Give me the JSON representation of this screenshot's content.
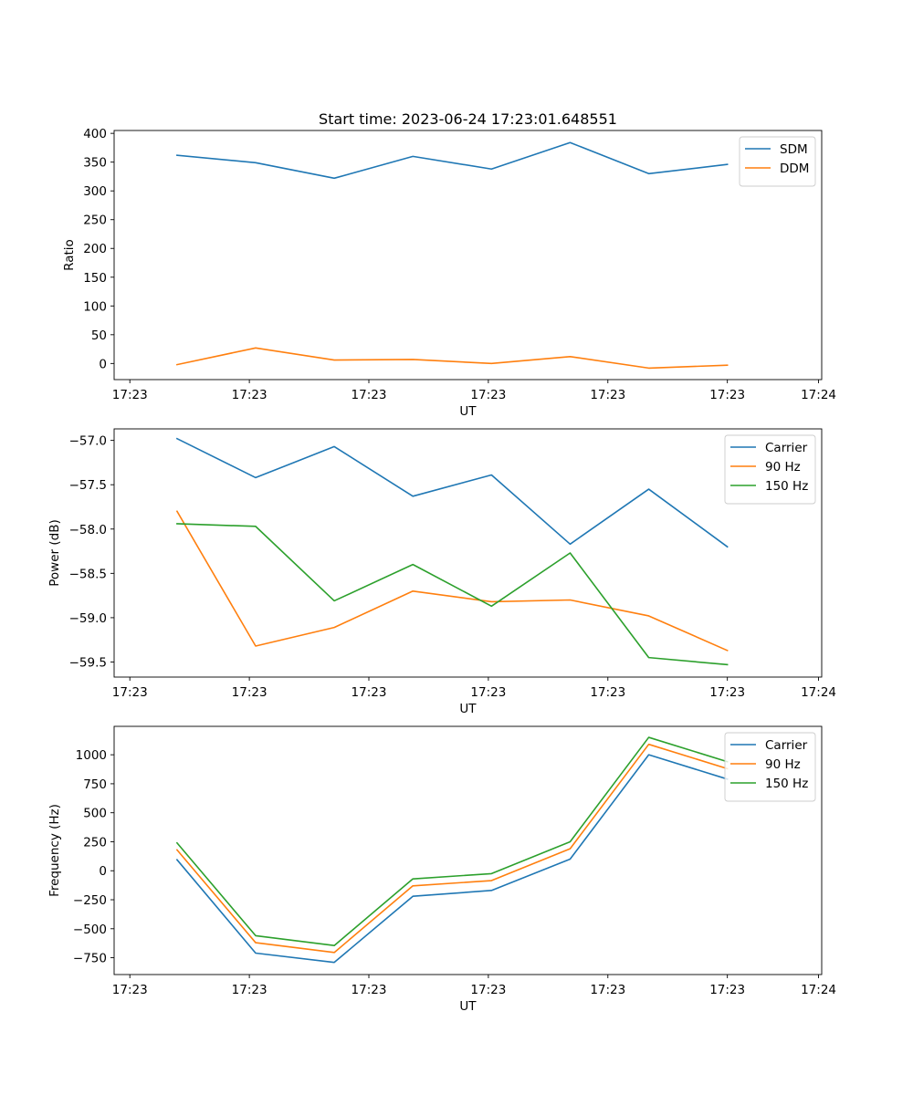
{
  "figure": {
    "title": "Start time: 2023-06-24 17:23:01.648551"
  },
  "chart_data": [
    {
      "type": "line",
      "title": "Start time: 2023-06-24 17:23:01.648551",
      "xlabel": "UT",
      "ylabel": "Ratio",
      "x_tick_labels": [
        "17:23",
        "17:23",
        "17:23",
        "17:23",
        "17:23",
        "17:23",
        "17:24"
      ],
      "x": [
        1,
        2,
        3,
        4,
        5,
        6,
        7,
        8
      ],
      "xlim": [
        0.2,
        9.2
      ],
      "y_ticks": [
        0,
        50,
        100,
        150,
        200,
        250,
        300,
        350,
        400
      ],
      "ylim": [
        -28,
        405
      ],
      "series": [
        {
          "name": "SDM",
          "color": "#1f77b4",
          "values": [
            362,
            349,
            322,
            360,
            338,
            384,
            330,
            346
          ]
        },
        {
          "name": "DDM",
          "color": "#ff7f0e",
          "values": [
            -2,
            27,
            6,
            7,
            0,
            12,
            -8,
            -3
          ]
        }
      ],
      "legend": "top-right",
      "grid": false
    },
    {
      "type": "line",
      "title": "",
      "xlabel": "UT",
      "ylabel": "Power (dB)",
      "x_tick_labels": [
        "17:23",
        "17:23",
        "17:23",
        "17:23",
        "17:23",
        "17:23",
        "17:24"
      ],
      "x": [
        1,
        2,
        3,
        4,
        5,
        6,
        7,
        8
      ],
      "xlim": [
        0.2,
        9.2
      ],
      "y_ticks": [
        -59.5,
        -59.0,
        -58.5,
        -58.0,
        -57.5,
        -57.0
      ],
      "y_tick_labels": [
        "−59.5",
        "−59.0",
        "−58.5",
        "−58.0",
        "−57.5",
        "−57.0"
      ],
      "ylim": [
        -59.67,
        -56.87
      ],
      "series": [
        {
          "name": "Carrier",
          "color": "#1f77b4",
          "values": [
            -56.98,
            -57.42,
            -57.07,
            -57.63,
            -57.39,
            -58.17,
            -57.55,
            -58.2
          ]
        },
        {
          "name": "90 Hz",
          "color": "#ff7f0e",
          "values": [
            -57.8,
            -59.32,
            -59.11,
            -58.7,
            -58.82,
            -58.8,
            -58.98,
            -59.37
          ]
        },
        {
          "name": "150 Hz",
          "color": "#2ca02c",
          "values": [
            -57.94,
            -57.97,
            -58.81,
            -58.4,
            -58.87,
            -58.27,
            -59.45,
            -59.53
          ]
        }
      ],
      "legend": "top-right",
      "grid": false
    },
    {
      "type": "line",
      "title": "",
      "xlabel": "UT",
      "ylabel": "Frequency (Hz)",
      "x_tick_labels": [
        "17:23",
        "17:23",
        "17:23",
        "17:23",
        "17:23",
        "17:23",
        "17:24"
      ],
      "x": [
        1,
        2,
        3,
        4,
        5,
        6,
        7,
        8
      ],
      "xlim": [
        0.2,
        9.2
      ],
      "y_ticks": [
        -750,
        -500,
        -250,
        0,
        250,
        500,
        750,
        1000
      ],
      "y_tick_labels": [
        "−750",
        "−500",
        "−250",
        "0",
        "250",
        "500",
        "750",
        "1000"
      ],
      "ylim": [
        -895,
        1245
      ],
      "series": [
        {
          "name": "Carrier",
          "color": "#1f77b4",
          "values": [
            95,
            -710,
            -790,
            -220,
            -170,
            100,
            1000,
            790
          ]
        },
        {
          "name": "90 Hz",
          "color": "#ff7f0e",
          "values": [
            180,
            -620,
            -705,
            -130,
            -85,
            190,
            1090,
            880
          ]
        },
        {
          "name": "150 Hz",
          "color": "#2ca02c",
          "values": [
            240,
            -560,
            -645,
            -70,
            -25,
            250,
            1150,
            940
          ]
        }
      ],
      "legend": "top-right",
      "grid": false
    }
  ]
}
